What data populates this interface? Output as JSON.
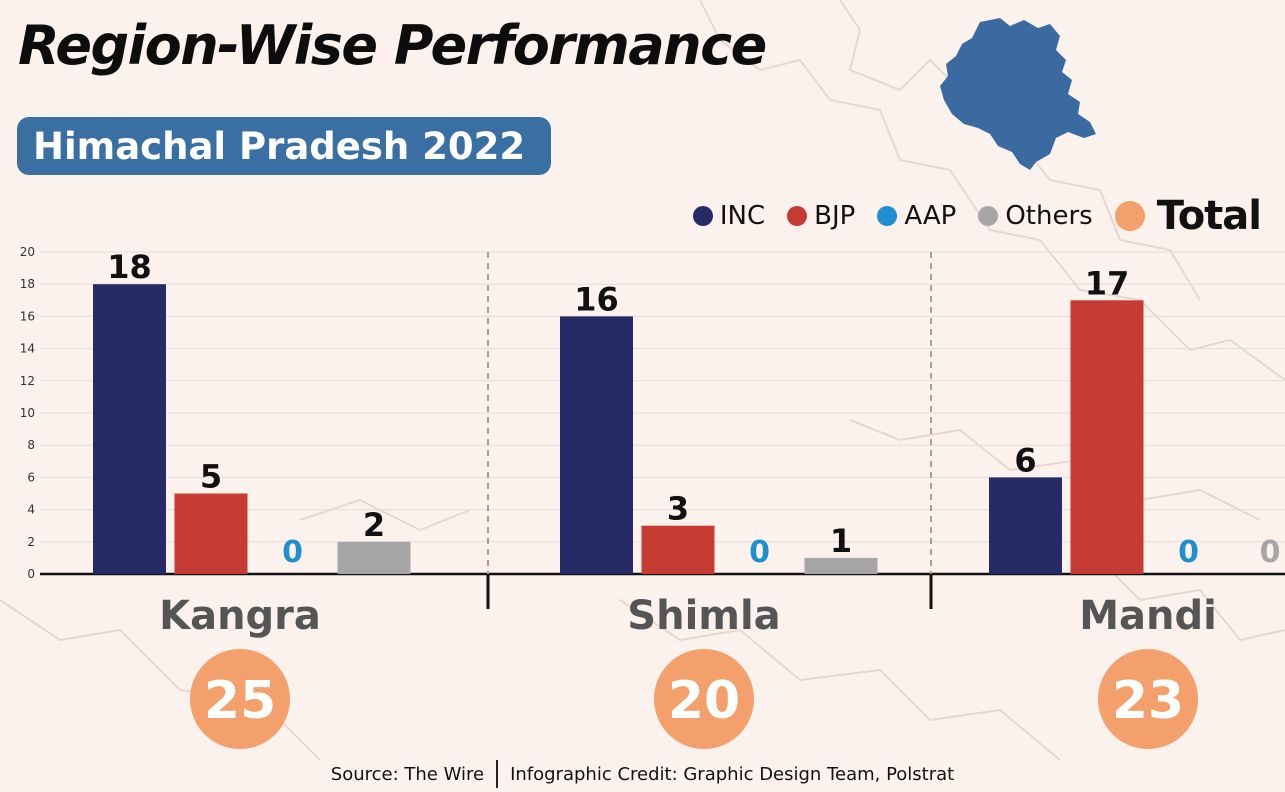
{
  "title": "Region-Wise Performance",
  "subtitle": "Himachal Pradesh 2022",
  "legend": {
    "items": [
      {
        "label": "INC",
        "color": "#262a66"
      },
      {
        "label": "BJP",
        "color": "#c63c33"
      },
      {
        "label": "AAP",
        "color": "#1f8fcf"
      },
      {
        "label": "Others",
        "color": "#a6a6a6"
      }
    ],
    "total_label": "Total",
    "total_color": "#f4a06d"
  },
  "chart_data": {
    "type": "bar",
    "title": "Region-Wise Performance",
    "subtitle": "Himachal Pradesh 2022",
    "categories": [
      "Kangra",
      "Shimla",
      "Mandi"
    ],
    "series": [
      {
        "name": "INC",
        "color": "#262a66",
        "values": [
          18,
          16,
          6
        ]
      },
      {
        "name": "BJP",
        "color": "#c63c33",
        "values": [
          5,
          3,
          17
        ]
      },
      {
        "name": "AAP",
        "color": "#1f8fcf",
        "values": [
          0,
          0,
          0
        ]
      },
      {
        "name": "Others",
        "color": "#a6a6a6",
        "values": [
          2,
          1,
          0
        ]
      }
    ],
    "totals": [
      25,
      20,
      23
    ],
    "ylim": [
      0,
      20
    ],
    "yticks": [
      0,
      2,
      4,
      6,
      8,
      10,
      12,
      14,
      16,
      18,
      20
    ],
    "grid": true,
    "legend_position": "top-right"
  },
  "footer": {
    "source": "Source: The Wire",
    "credit": "Infographic Credit: Graphic Design Team, Polstrat"
  }
}
